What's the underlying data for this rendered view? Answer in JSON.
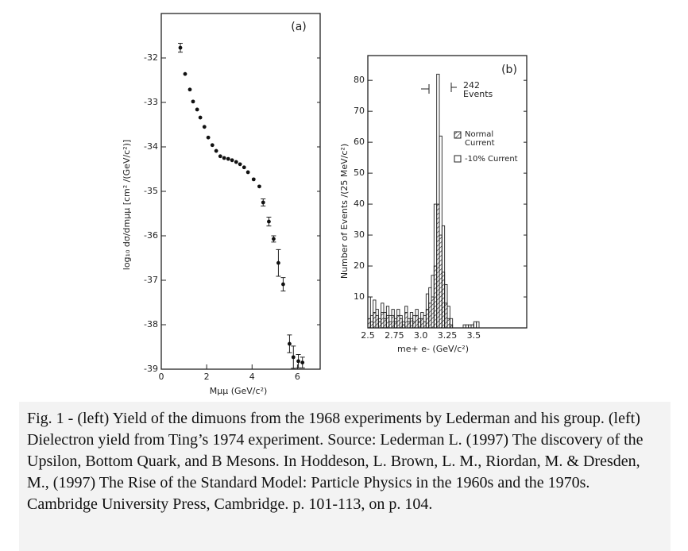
{
  "chart_data": [
    {
      "type": "scatter",
      "panel_label": "(a)",
      "x_label": "Mμμ  (GeV/c²)",
      "y_label": "log₁₀ dσ/dmμμ [cm² /(GeV/c²)]",
      "x": [
        0.84,
        1.05,
        1.26,
        1.4,
        1.58,
        1.72,
        1.9,
        2.07,
        2.25,
        2.42,
        2.6,
        2.77,
        2.95,
        3.12,
        3.3,
        3.47,
        3.65,
        3.82,
        4.07,
        4.32,
        4.49,
        4.74,
        4.95,
        5.16,
        5.37,
        5.65,
        5.82,
        6.04,
        6.22
      ],
      "values": [
        -31.77,
        -32.36,
        -32.71,
        -32.98,
        -33.16,
        -33.34,
        -33.55,
        -33.79,
        -33.96,
        -34.09,
        -34.21,
        -34.25,
        -34.27,
        -34.3,
        -34.34,
        -34.39,
        -34.46,
        -34.57,
        -34.73,
        -34.89,
        -35.25,
        -35.68,
        -36.07,
        -36.61,
        -37.09,
        -38.43,
        -38.73,
        -38.82,
        -38.85
      ],
      "errors": [
        0.1,
        0,
        0,
        0,
        0,
        0,
        0,
        0,
        0,
        0,
        0,
        0,
        0,
        0,
        0,
        0,
        0,
        0,
        0,
        0,
        0.08,
        0.1,
        0.07,
        0.3,
        0.15,
        0.2,
        0.25,
        0.15,
        0.12
      ],
      "xlim": [
        0,
        7
      ],
      "ylim": [
        -39,
        -31
      ],
      "xticks": [
        0,
        2,
        4,
        6
      ],
      "yticks": [
        -39,
        -38,
        -37,
        -36,
        -35,
        -34,
        -33,
        -32
      ]
    },
    {
      "type": "histogram",
      "panel_label": "(b)",
      "x_label": "me+ e-   (GeV/c²)",
      "y_label": "Number of Events /(25 MeV/c²)",
      "annotation": "242 Events",
      "bins": [
        2.5,
        2.525,
        2.55,
        2.575,
        2.6,
        2.625,
        2.65,
        2.675,
        2.7,
        2.725,
        2.75,
        2.775,
        2.8,
        2.825,
        2.85,
        2.875,
        2.9,
        2.925,
        2.95,
        2.975,
        3,
        3.025,
        3.05,
        3.075,
        3.1,
        3.125,
        3.15,
        3.175,
        3.2,
        3.225,
        3.25,
        3.275,
        3.3,
        3.325,
        3.35,
        3.375,
        3.4,
        3.425,
        3.45,
        3.475,
        3.5,
        3.525,
        3.55
      ],
      "series": [
        {
          "name": "Normal Current",
          "color": "#222222",
          "values": [
            3,
            2,
            5,
            4,
            2,
            5,
            3,
            4,
            2,
            4,
            2,
            4,
            3,
            1,
            5,
            2,
            3,
            2,
            4,
            2,
            3,
            2,
            6,
            8,
            10,
            20,
            40,
            30,
            18,
            8,
            3,
            1,
            0,
            0,
            0,
            0,
            0,
            0,
            0,
            0,
            0,
            0
          ]
        },
        {
          "name": "-10% Current",
          "color": "#222222",
          "values": [
            10,
            4,
            9,
            6,
            3,
            8,
            5,
            7,
            4,
            6,
            3,
            6,
            4,
            2,
            7,
            3,
            5,
            4,
            6,
            3,
            5,
            4,
            11,
            13,
            17,
            40,
            82,
            62,
            33,
            14,
            7,
            3,
            0,
            0,
            0,
            0,
            1,
            1,
            1,
            1,
            2,
            2
          ]
        }
      ],
      "xlim": [
        2.5,
        4.0
      ],
      "ylim": [
        0,
        88
      ],
      "xticks": [
        2.5,
        2.75,
        {
          "value": 3,
          "label": "3.0"
        },
        3.25,
        3.5
      ],
      "yticks": [
        10,
        20,
        30,
        40,
        50,
        60,
        70,
        80
      ]
    }
  ],
  "caption": "Fig. 1 - (left) Yield of the dimuons from the 1968 experiments by Lederman and his group. (left) Dielectron yield from Ting’s 1974 experiment. Source: Lederman L. (1997) The discovery of the Upsilon, Bottom Quark, and B Mesons. In Hoddeson, L. Brown, L. M., Riordan, M. & Dresden, M., (1997) The Rise of the Standard Model: Particle Physics in the 1960s and the 1970s. Cambridge University Press, Cambridge. p. 101-113, on p. 104."
}
